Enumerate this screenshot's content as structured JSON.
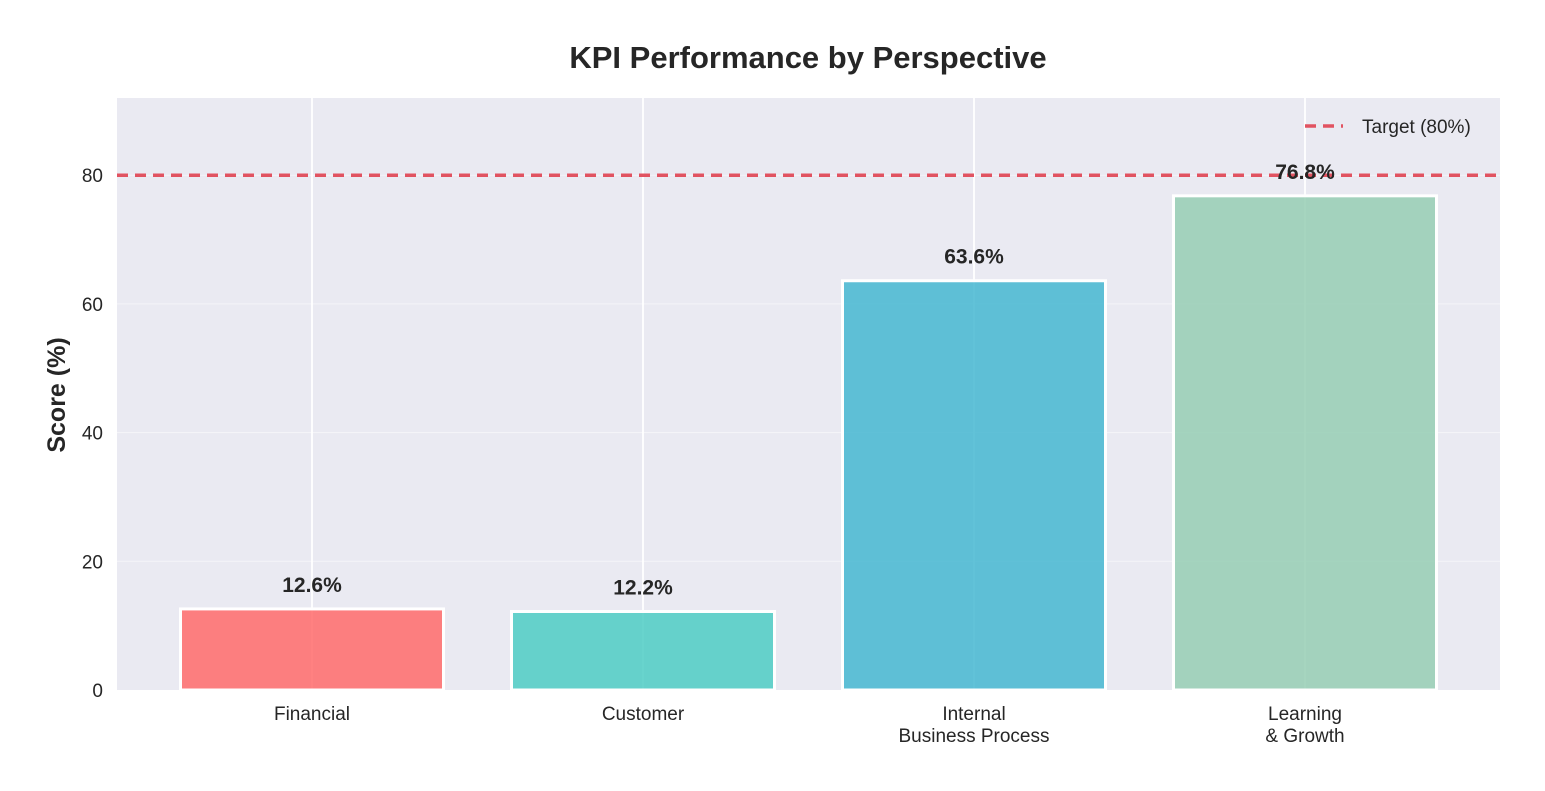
{
  "chart_data": {
    "type": "bar",
    "title": "KPI Performance by Perspective",
    "xlabel": "",
    "ylabel": "Score (%)",
    "categories": [
      [
        "Financial"
      ],
      [
        "Customer"
      ],
      [
        "Internal",
        "Business Process"
      ],
      [
        "Learning",
        "& Growth"
      ]
    ],
    "values": [
      12.6,
      12.2,
      63.6,
      76.8
    ],
    "value_labels": [
      "12.6%",
      "12.2%",
      "63.6%",
      "76.8%"
    ],
    "colors": [
      "#FF6B6B",
      "#4ECDC4",
      "#45B7D1",
      "#96CEB4"
    ],
    "ylim": [
      0,
      92
    ],
    "yticks": [
      0,
      20,
      40,
      60,
      80
    ],
    "ytick_labels": [
      "0",
      "20",
      "40",
      "60",
      "80"
    ],
    "grid": true,
    "target": {
      "value": 80,
      "label": "Target (80%)",
      "color": "#E15361",
      "style": "dashed"
    },
    "legend_position": "top-right",
    "background_color": "#EAEAF2"
  }
}
